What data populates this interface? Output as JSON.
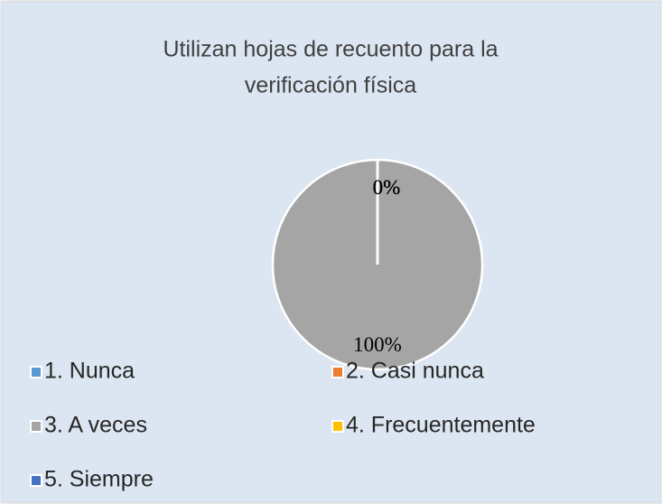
{
  "chart_data": {
    "type": "pie",
    "title": [
      "Utilizan hojas de recuento para la",
      "verificación física"
    ],
    "categories": [
      "1.  Nunca",
      "2.  Casi nunca",
      "3.  A veces",
      "4.  Frecuentemente",
      "5.  Siempre"
    ],
    "values": [
      0,
      0,
      100,
      0,
      0
    ],
    "value_labels": [
      "0%",
      "0%",
      "100%",
      "0%",
      "0%"
    ],
    "colors": [
      "#5b9bd5",
      "#ed7d31",
      "#a5a5a5",
      "#ffc000",
      "#4472c4"
    ],
    "legend": "bottom"
  }
}
